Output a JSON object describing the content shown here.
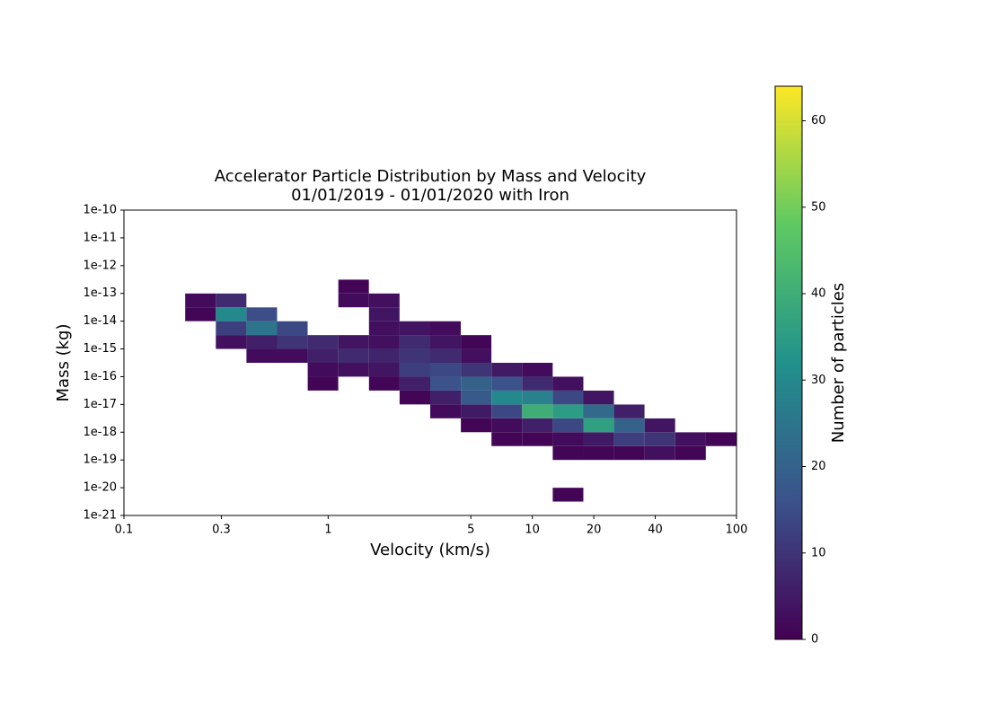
{
  "chart_data": {
    "type": "hist2d",
    "title": "Accelerator Particle Distribution by Mass and Velocity",
    "subtitle": "01/01/2019 - 01/01/2020 with Iron",
    "x_label": "Velocity (km/s)",
    "y_label": "Mass (kg)",
    "colorbar_label": "Number of particles",
    "x_scale": "log",
    "y_scale": "log",
    "colormap": "viridis",
    "xlim": [
      0.1,
      100
    ],
    "ylim": [
      1e-21,
      1e-10
    ],
    "clim": [
      0,
      64
    ],
    "xticks": [
      0.1,
      0.3,
      1,
      5,
      10,
      20,
      40,
      100
    ],
    "yticks": [
      {
        "value": 1e-21,
        "label": "1e-21"
      },
      {
        "value": 1e-20,
        "label": "1e-20"
      },
      {
        "value": 1e-19,
        "label": "1e-19"
      },
      {
        "value": 1e-18,
        "label": "1e-18"
      },
      {
        "value": 1e-17,
        "label": "1e-17"
      },
      {
        "value": 1e-16,
        "label": "1e-16"
      },
      {
        "value": 1e-15,
        "label": "1e-15"
      },
      {
        "value": 1e-14,
        "label": "1e-14"
      },
      {
        "value": 1e-13,
        "label": "1e-13"
      },
      {
        "value": 1e-12,
        "label": "1e-12"
      },
      {
        "value": 1e-11,
        "label": "1e-11"
      },
      {
        "value": 1e-10,
        "label": "1e-10"
      }
    ],
    "cticks": [
      0,
      10,
      20,
      30,
      40,
      50,
      60
    ],
    "xbins": [
      0.1,
      0.1413,
      0.1995,
      0.2818,
      0.3981,
      0.5623,
      0.7943,
      1.122,
      1.585,
      2.239,
      3.162,
      4.467,
      6.31,
      8.913,
      12.59,
      17.78,
      25.12,
      35.48,
      50.12,
      70.79,
      100
    ],
    "ybins": [
      1e-21,
      3.162e-21,
      1e-20,
      3.162e-20,
      1e-19,
      3.162e-19,
      1e-18,
      3.162e-18,
      1e-17,
      3.162e-17,
      1e-16,
      3.162e-16,
      1e-15,
      3.162e-15,
      1e-14,
      3.162e-14,
      1e-13,
      3.162e-13,
      1e-12,
      3.162e-12,
      1e-11,
      3.162e-11,
      1e-10
    ],
    "counts": [
      [
        0,
        0,
        0,
        0,
        0,
        0,
        0,
        0,
        0,
        0,
        0,
        0,
        0,
        0,
        0,
        0,
        0,
        0,
        0,
        0
      ],
      [
        0,
        0,
        0,
        0,
        0,
        0,
        0,
        0,
        0,
        0,
        0,
        0,
        0,
        0,
        1,
        0,
        0,
        0,
        0,
        0
      ],
      [
        0,
        0,
        0,
        0,
        0,
        0,
        0,
        0,
        0,
        0,
        0,
        0,
        0,
        0,
        0,
        0,
        0,
        0,
        0,
        0
      ],
      [
        0,
        0,
        0,
        0,
        0,
        0,
        0,
        0,
        0,
        0,
        0,
        0,
        0,
        0,
        0,
        0,
        0,
        0,
        0,
        0
      ],
      [
        0,
        0,
        0,
        0,
        0,
        0,
        0,
        0,
        0,
        0,
        0,
        0,
        0,
        0,
        1,
        1,
        1,
        3,
        1,
        0
      ],
      [
        0,
        0,
        0,
        0,
        0,
        0,
        0,
        0,
        0,
        0,
        0,
        0,
        1,
        1,
        2,
        5,
        12,
        10,
        3,
        1
      ],
      [
        0,
        0,
        0,
        0,
        0,
        0,
        0,
        0,
        0,
        0,
        0,
        1,
        2,
        6,
        14,
        36,
        20,
        4,
        0,
        0
      ],
      [
        0,
        0,
        0,
        0,
        0,
        0,
        0,
        0,
        0,
        0,
        2,
        5,
        14,
        40,
        35,
        22,
        6,
        0,
        0,
        0
      ],
      [
        0,
        0,
        0,
        0,
        0,
        0,
        0,
        0,
        0,
        1,
        6,
        18,
        30,
        28,
        14,
        4,
        0,
        0,
        0,
        0
      ],
      [
        0,
        0,
        0,
        0,
        0,
        0,
        1,
        0,
        1,
        6,
        16,
        20,
        16,
        8,
        3,
        0,
        0,
        0,
        0,
        0
      ],
      [
        0,
        0,
        0,
        0,
        0,
        0,
        2,
        3,
        4,
        12,
        14,
        10,
        5,
        2,
        0,
        0,
        0,
        0,
        0,
        0
      ],
      [
        0,
        0,
        0,
        0,
        2,
        2,
        6,
        8,
        7,
        10,
        8,
        3,
        0,
        0,
        0,
        0,
        0,
        0,
        0,
        0
      ],
      [
        0,
        0,
        0,
        3,
        6,
        10,
        8,
        4,
        3,
        8,
        4,
        1,
        0,
        0,
        0,
        0,
        0,
        0,
        0,
        0
      ],
      [
        0,
        0,
        0,
        12,
        25,
        14,
        0,
        0,
        3,
        4,
        2,
        0,
        0,
        0,
        0,
        0,
        0,
        0,
        0,
        0
      ],
      [
        0,
        0,
        1,
        30,
        15,
        0,
        0,
        0,
        4,
        0,
        0,
        0,
        0,
        0,
        0,
        0,
        0,
        0,
        0,
        0
      ],
      [
        0,
        0,
        2,
        8,
        0,
        0,
        0,
        2,
        3,
        0,
        0,
        0,
        0,
        0,
        0,
        0,
        0,
        0,
        0,
        0
      ],
      [
        0,
        0,
        0,
        0,
        0,
        0,
        0,
        1,
        0,
        0,
        0,
        0,
        0,
        0,
        0,
        0,
        0,
        0,
        0,
        0
      ],
      [
        0,
        0,
        0,
        0,
        0,
        0,
        0,
        0,
        0,
        0,
        0,
        0,
        0,
        0,
        0,
        0,
        0,
        0,
        0,
        0
      ],
      [
        0,
        0,
        0,
        0,
        0,
        0,
        0,
        0,
        0,
        0,
        0,
        0,
        0,
        0,
        0,
        0,
        0,
        0,
        0,
        0
      ],
      [
        0,
        0,
        0,
        0,
        0,
        0,
        0,
        0,
        0,
        0,
        0,
        0,
        0,
        0,
        0,
        0,
        0,
        0,
        0,
        0
      ],
      [
        0,
        0,
        0,
        0,
        0,
        0,
        0,
        0,
        0,
        0,
        0,
        0,
        0,
        0,
        0,
        0,
        0,
        0,
        0,
        0
      ],
      [
        0,
        0,
        0,
        0,
        0,
        0,
        0,
        0,
        0,
        0,
        0,
        0,
        0,
        0,
        0,
        0,
        0,
        0,
        0,
        0
      ]
    ]
  }
}
